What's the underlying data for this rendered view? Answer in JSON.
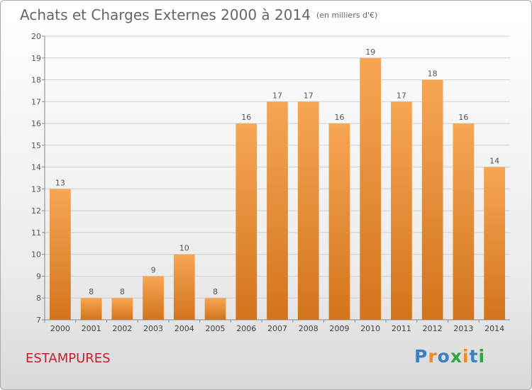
{
  "title": "Achats et Charges Externes 2000 à 2014",
  "unit_label": "(en milliers d'€)",
  "location": "ESTAMPURES",
  "logo": {
    "letters": [
      "P",
      "r",
      "o",
      "x",
      "i",
      "t",
      "i"
    ],
    "colors": [
      "#3d7fc4",
      "#f08a1c",
      "#3d7fc4",
      "#2ea844",
      "#f08a1c",
      "#3d7fc4",
      "#2ea844"
    ]
  },
  "colors": {
    "bar_light": "#f7a654",
    "bar_dark": "#d2741c",
    "title": "#666666",
    "location": "#c8202f",
    "grid": "#d0d0d0",
    "axis": "#888888"
  },
  "chart_data": {
    "type": "bar",
    "categories": [
      "2000",
      "2001",
      "2002",
      "2003",
      "2004",
      "2005",
      "2006",
      "2007",
      "2008",
      "2009",
      "2010",
      "2011",
      "2012",
      "2013",
      "2014"
    ],
    "values": [
      13,
      8,
      8,
      9,
      10,
      8,
      16,
      17,
      17,
      16,
      19,
      17,
      18,
      16,
      14
    ],
    "ylim": [
      7,
      20
    ],
    "yticks": [
      7,
      8,
      9,
      10,
      11,
      12,
      13,
      14,
      15,
      16,
      17,
      18,
      19,
      20
    ],
    "grid": true,
    "data_labels": true
  }
}
